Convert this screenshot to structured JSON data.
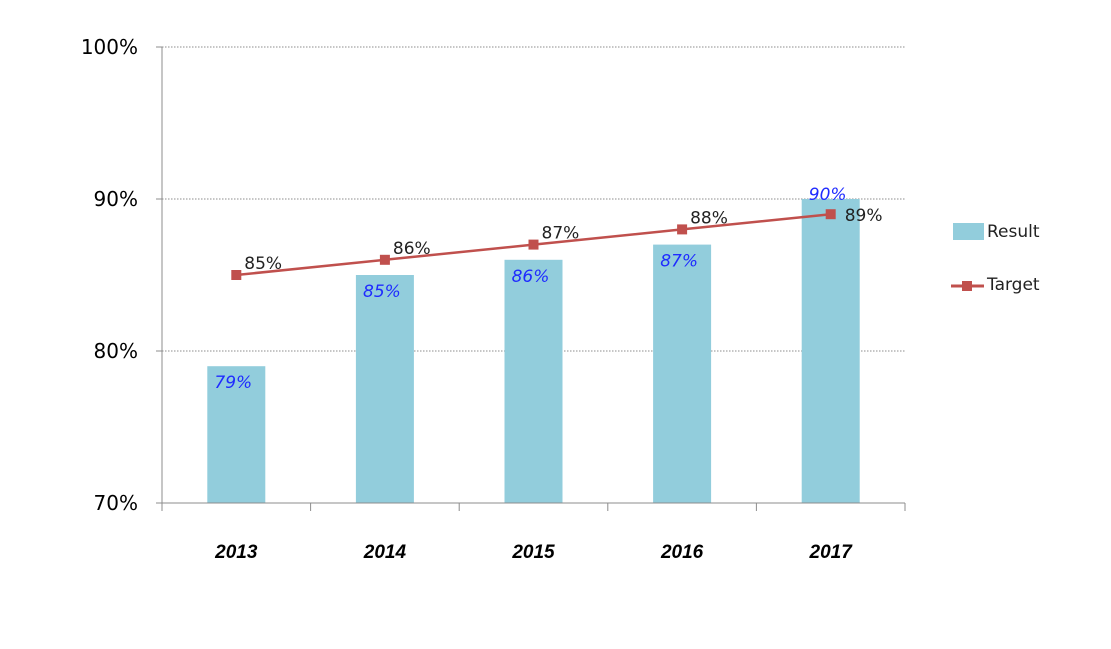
{
  "chart_data": {
    "type": "bar",
    "categories": [
      "2013",
      "2014",
      "2015",
      "2016",
      "2017"
    ],
    "ylim": [
      70,
      100
    ],
    "yticks": [
      70,
      80,
      90,
      100
    ],
    "ytick_labels": [
      "70%",
      "80%",
      "90%",
      "100%"
    ],
    "grid": "horizontal dotted",
    "legend_position": "right",
    "series": [
      {
        "name": "Result",
        "type": "bar",
        "color": "#92cddc",
        "label_color": "#1f2bff",
        "values": [
          79,
          85,
          86,
          87,
          90
        ],
        "labels": [
          "79%",
          "85%",
          "86%",
          "87%",
          "90%"
        ]
      },
      {
        "name": "Target",
        "type": "line",
        "color": "#c0504d",
        "marker": "square",
        "values": [
          85,
          86,
          87,
          88,
          89
        ],
        "labels": [
          "85%",
          "86%",
          "87%",
          "88%",
          "89%"
        ]
      }
    ]
  }
}
